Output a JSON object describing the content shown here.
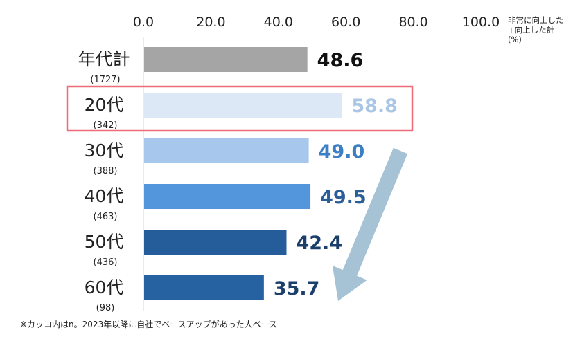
{
  "chart_data": {
    "type": "bar",
    "orientation": "horizontal",
    "xlim": [
      0,
      100
    ],
    "x_ticks": [
      "0.0",
      "20.0",
      "40.0",
      "60.0",
      "80.0",
      "100.0"
    ],
    "legend_note": [
      "非常に向上した",
      "+向上した計",
      "(%)"
    ],
    "categories": [
      "年代計",
      "20代",
      "30代",
      "40代",
      "50代",
      "60代"
    ],
    "sample_sizes": [
      "(1727)",
      "(342)",
      "(388)",
      "(463)",
      "(436)",
      "(98)"
    ],
    "values": [
      48.6,
      58.8,
      49.0,
      49.5,
      42.4,
      35.7
    ],
    "value_labels": [
      "48.6",
      "58.8",
      "49.0",
      "49.5",
      "42.4",
      "35.7"
    ],
    "bar_colors": [
      "#a5a5a5",
      "#dde8f6",
      "#a8c7ec",
      "#5496dc",
      "#255d9a",
      "#2661a1"
    ],
    "label_colors": [
      "#111111",
      "#a9c6e6",
      "#3d7fc4",
      "#2a5e99",
      "#1c3e6a",
      "#1c3e6a"
    ],
    "highlight_category": "20代",
    "highlight_color": "#ee6b78",
    "trend_arrow_color": "#a5c3d4",
    "footnote": "※カッコ内はn。2023年以降に自社でベースアップがあった人ベース"
  }
}
